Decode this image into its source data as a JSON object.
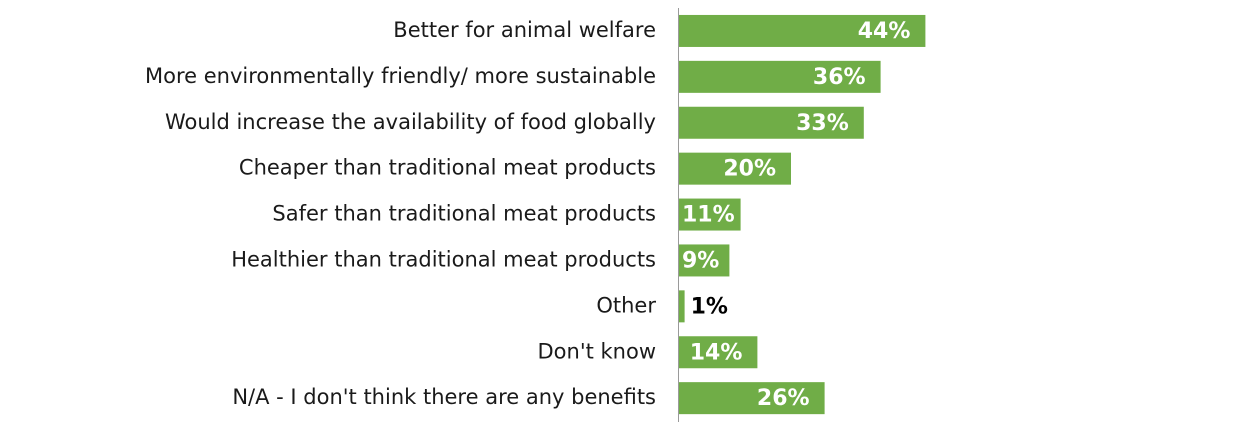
{
  "chart_data": {
    "type": "bar",
    "orientation": "horizontal",
    "categories": [
      "Better for animal welfare",
      "More environmentally friendly/ more sustainable",
      "Would increase the availability of food globally",
      "Cheaper than traditional meat products",
      "Safer than traditional meat products",
      "Healthier than traditional meat products",
      "Other",
      "Don't know",
      "N/A - I don't think there are any benefits"
    ],
    "values": [
      44,
      36,
      33,
      20,
      11,
      9,
      1,
      14,
      26
    ],
    "value_labels": [
      "44%",
      "36%",
      "33%",
      "20%",
      "11%",
      "9%",
      "1%",
      "14%",
      "26%"
    ],
    "color": "#70ad47"
  }
}
